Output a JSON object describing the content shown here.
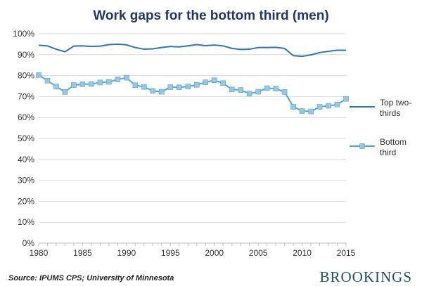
{
  "chart_data": {
    "type": "line",
    "title": "Work gaps for the bottom third (men)",
    "xlabel": "",
    "ylabel": "",
    "xlim": [
      1980,
      2015
    ],
    "ylim": [
      0,
      100
    ],
    "x_ticks": [
      "1980",
      "1985",
      "1990",
      "1995",
      "2000",
      "2005",
      "2010",
      "2015"
    ],
    "y_ticks": [
      "0%",
      "10%",
      "20%",
      "30%",
      "40%",
      "50%",
      "60%",
      "70%",
      "80%",
      "90%",
      "100%"
    ],
    "grid": "horizontal",
    "legend_position": "right",
    "x": [
      1980,
      1981,
      1982,
      1983,
      1984,
      1985,
      1986,
      1987,
      1988,
      1989,
      1990,
      1991,
      1992,
      1993,
      1994,
      1995,
      1996,
      1997,
      1998,
      1999,
      2000,
      2001,
      2002,
      2003,
      2004,
      2005,
      2006,
      2007,
      2008,
      2009,
      2010,
      2011,
      2012,
      2013,
      2014,
      2015
    ],
    "series": [
      {
        "name": "Top two-thirds",
        "legend_lines": [
          "Top two-",
          "thirds"
        ],
        "color": "#2e75b6",
        "marker": "none",
        "values": [
          94.5,
          94.2,
          92.6,
          91.4,
          94.1,
          94.2,
          93.9,
          94.1,
          94.8,
          95.0,
          94.7,
          93.4,
          92.6,
          92.8,
          93.4,
          93.9,
          93.7,
          94.2,
          94.8,
          94.3,
          94.6,
          94.2,
          93.0,
          92.5,
          92.6,
          93.4,
          93.4,
          93.5,
          93.0,
          89.5,
          89.2,
          89.9,
          91.0,
          91.6,
          92.1,
          92.1
        ]
      },
      {
        "name": "Bottom third",
        "legend_lines": [
          "Bottom",
          "third"
        ],
        "color": "#4bacc6",
        "marker": "square",
        "marker_color": "#9dc3e6",
        "values": [
          80.3,
          77.6,
          74.8,
          72.2,
          75.5,
          75.9,
          76.0,
          76.7,
          77.0,
          78.2,
          79.0,
          75.4,
          74.6,
          72.7,
          72.3,
          74.5,
          74.4,
          74.8,
          75.6,
          76.8,
          77.8,
          76.4,
          73.4,
          73.1,
          71.4,
          72.3,
          74.0,
          73.8,
          72.2,
          65.1,
          63.1,
          62.9,
          65.1,
          65.6,
          66.2,
          68.9
        ]
      }
    ]
  },
  "footer": {
    "source": "Source: IPUMS CPS; University of Minnesota",
    "brand": "BROOKINGS"
  }
}
